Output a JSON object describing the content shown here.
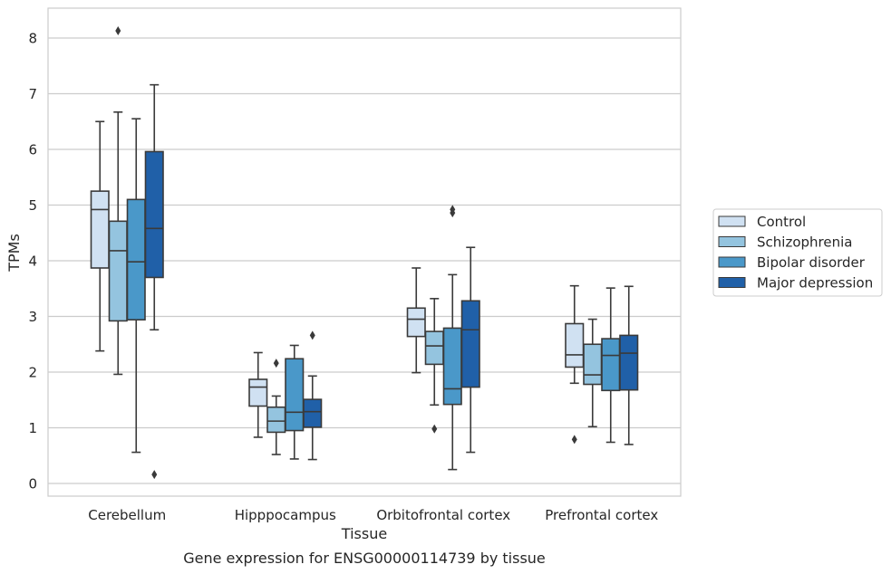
{
  "chart_data": {
    "type": "box",
    "title": "Gene expression for ENSG00000114739 by tissue",
    "xlabel": "Tissue",
    "ylabel": "TPMs",
    "ylim": [
      -0.2,
      8.5
    ],
    "yticks": [
      0,
      1,
      2,
      3,
      4,
      5,
      6,
      7,
      8
    ],
    "grid": true,
    "legend_position": "right",
    "categories": [
      "Cerebellum",
      "Hipppocampus",
      "Orbitofrontal cortex",
      "Prefrontal cortex"
    ],
    "series": [
      {
        "name": "Control",
        "color": "#d0e1f2",
        "boxes": [
          {
            "whislo": 2.38,
            "q1": 3.87,
            "med": 4.92,
            "q3": 5.25,
            "whishi": 6.5,
            "fliers": []
          },
          {
            "whislo": 0.83,
            "q1": 1.39,
            "med": 1.73,
            "q3": 1.87,
            "whishi": 2.35,
            "fliers": []
          },
          {
            "whislo": 1.99,
            "q1": 2.64,
            "med": 2.95,
            "q3": 3.15,
            "whishi": 3.87,
            "fliers": []
          },
          {
            "whislo": 1.8,
            "q1": 2.09,
            "med": 2.31,
            "q3": 2.87,
            "whishi": 3.55,
            "fliers": [
              0.79
            ]
          }
        ]
      },
      {
        "name": "Schizophrenia",
        "color": "#94c4df",
        "boxes": [
          {
            "whislo": 1.96,
            "q1": 2.92,
            "med": 4.18,
            "q3": 4.71,
            "whishi": 6.67,
            "fliers": [
              8.13
            ]
          },
          {
            "whislo": 0.52,
            "q1": 0.92,
            "med": 1.12,
            "q3": 1.37,
            "whishi": 1.57,
            "fliers": [
              2.16
            ]
          },
          {
            "whislo": 1.41,
            "q1": 2.14,
            "med": 2.47,
            "q3": 2.73,
            "whishi": 3.32,
            "fliers": [
              0.98
            ]
          },
          {
            "whislo": 1.02,
            "q1": 1.78,
            "med": 1.95,
            "q3": 2.5,
            "whishi": 2.95,
            "fliers": []
          }
        ]
      },
      {
        "name": "Bipolar disorder",
        "color": "#4a98c9",
        "boxes": [
          {
            "whislo": 0.56,
            "q1": 2.94,
            "med": 3.98,
            "q3": 5.1,
            "whishi": 6.55,
            "fliers": []
          },
          {
            "whislo": 0.44,
            "q1": 0.95,
            "med": 1.28,
            "q3": 2.24,
            "whishi": 2.48,
            "fliers": []
          },
          {
            "whislo": 0.25,
            "q1": 1.42,
            "med": 1.7,
            "q3": 2.79,
            "whishi": 3.75,
            "fliers": [
              4.86,
              4.92
            ]
          },
          {
            "whislo": 0.74,
            "q1": 1.67,
            "med": 2.3,
            "q3": 2.6,
            "whishi": 3.51,
            "fliers": []
          }
        ]
      },
      {
        "name": "Major depression",
        "color": "#2060a8",
        "boxes": [
          {
            "whislo": 2.76,
            "q1": 3.7,
            "med": 4.58,
            "q3": 5.96,
            "whishi": 7.16,
            "fliers": [
              0.16
            ]
          },
          {
            "whislo": 0.43,
            "q1": 1.01,
            "med": 1.29,
            "q3": 1.51,
            "whishi": 1.93,
            "fliers": [
              2.66
            ]
          },
          {
            "whislo": 0.56,
            "q1": 1.73,
            "med": 2.76,
            "q3": 3.28,
            "whishi": 4.24,
            "fliers": []
          },
          {
            "whislo": 0.7,
            "q1": 1.68,
            "med": 2.34,
            "q3": 2.66,
            "whishi": 3.54,
            "fliers": []
          }
        ]
      }
    ]
  }
}
